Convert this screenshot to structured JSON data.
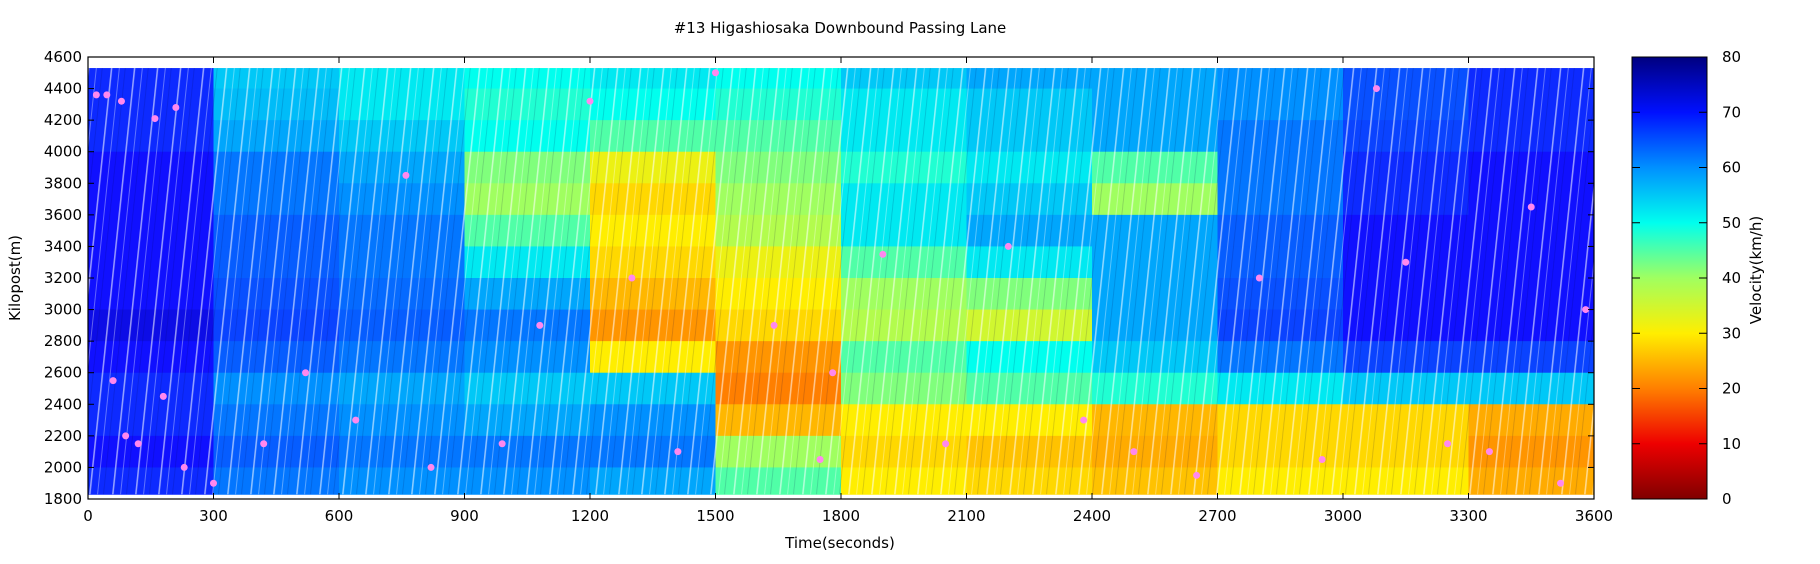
{
  "chart_data": {
    "type": "heatmap",
    "title": "#13 Higashiosaka Downbound Passing Lane",
    "xlabel": "Time(seconds)",
    "ylabel": "Kilopost(m)",
    "colorbar_label": "Velocity(km/h)",
    "xlim": [
      0,
      3600
    ],
    "ylim": [
      1800,
      4600
    ],
    "clim": [
      0,
      80
    ],
    "colormap": "jet",
    "x_ticks": [
      0,
      300,
      600,
      900,
      1200,
      1500,
      1800,
      2100,
      2400,
      2700,
      3000,
      3300,
      3600
    ],
    "y_ticks": [
      1800,
      2000,
      2200,
      2400,
      2600,
      2800,
      3000,
      3200,
      3400,
      3600,
      3800,
      4000,
      4200,
      4400,
      4600
    ],
    "colorbar_ticks": [
      0,
      10,
      20,
      30,
      40,
      50,
      60,
      70,
      80
    ],
    "data_extent_kilopost": [
      1830,
      4530
    ],
    "time_bin_edges": [
      0,
      300,
      600,
      900,
      1200,
      1500,
      1800,
      2100,
      2400,
      2700,
      3000,
      3300,
      3600
    ],
    "kilopost_bin_lower_edges_top_to_bottom": [
      4400,
      4200,
      4000,
      3800,
      3600,
      3400,
      3200,
      3000,
      2800,
      2600,
      2400,
      2200,
      2000,
      1800
    ],
    "velocity_grid_kmh": [
      [
        68,
        55,
        52,
        50,
        52,
        50,
        55,
        58,
        58,
        60,
        65,
        68
      ],
      [
        68,
        56,
        52,
        48,
        50,
        48,
        52,
        55,
        58,
        60,
        65,
        68
      ],
      [
        68,
        58,
        55,
        50,
        45,
        45,
        52,
        55,
        58,
        62,
        66,
        68
      ],
      [
        70,
        62,
        58,
        42,
        32,
        42,
        48,
        52,
        45,
        62,
        68,
        70
      ],
      [
        70,
        62,
        60,
        40,
        28,
        40,
        52,
        55,
        40,
        62,
        68,
        70
      ],
      [
        70,
        64,
        62,
        45,
        30,
        38,
        52,
        58,
        58,
        64,
        70,
        70
      ],
      [
        70,
        64,
        62,
        52,
        28,
        32,
        45,
        52,
        58,
        64,
        70,
        70
      ],
      [
        70,
        65,
        63,
        58,
        25,
        30,
        40,
        42,
        58,
        65,
        70,
        70
      ],
      [
        72,
        66,
        64,
        62,
        22,
        28,
        38,
        35,
        58,
        66,
        70,
        70
      ],
      [
        70,
        64,
        62,
        60,
        30,
        22,
        45,
        50,
        55,
        62,
        66,
        66
      ],
      [
        68,
        60,
        58,
        55,
        55,
        20,
        42,
        45,
        48,
        52,
        55,
        55
      ],
      [
        68,
        62,
        60,
        58,
        60,
        25,
        30,
        30,
        25,
        28,
        28,
        24
      ],
      [
        70,
        64,
        62,
        62,
        62,
        40,
        28,
        26,
        24,
        28,
        28,
        22
      ],
      [
        68,
        62,
        60,
        60,
        58,
        45,
        30,
        28,
        26,
        30,
        30,
        24
      ]
    ],
    "stopped_points_color": "#ff88ee",
    "stopped_points": [
      [
        20,
        4360
      ],
      [
        45,
        4360
      ],
      [
        80,
        4320
      ],
      [
        160,
        4210
      ],
      [
        210,
        4280
      ],
      [
        60,
        2550
      ],
      [
        90,
        2200
      ],
      [
        120,
        2150
      ],
      [
        180,
        2450
      ],
      [
        230,
        2000
      ],
      [
        300,
        1900
      ],
      [
        420,
        2150
      ],
      [
        520,
        2600
      ],
      [
        640,
        2300
      ],
      [
        760,
        3850
      ],
      [
        820,
        2000
      ],
      [
        990,
        2150
      ],
      [
        1080,
        2900
      ],
      [
        1200,
        4320
      ],
      [
        1300,
        3200
      ],
      [
        1410,
        2100
      ],
      [
        1500,
        4500
      ],
      [
        1640,
        2900
      ],
      [
        1780,
        2600
      ],
      [
        1900,
        3350
      ],
      [
        2050,
        2150
      ],
      [
        2200,
        3400
      ],
      [
        2380,
        2300
      ],
      [
        2500,
        2100
      ],
      [
        2650,
        1950
      ],
      [
        2800,
        3200
      ],
      [
        2950,
        2050
      ],
      [
        3080,
        4400
      ],
      [
        3150,
        3300
      ],
      [
        3250,
        2150
      ],
      [
        3350,
        2100
      ],
      [
        3450,
        3650
      ],
      [
        3520,
        1900
      ],
      [
        3580,
        3000
      ],
      [
        1750,
        2050
      ]
    ]
  }
}
